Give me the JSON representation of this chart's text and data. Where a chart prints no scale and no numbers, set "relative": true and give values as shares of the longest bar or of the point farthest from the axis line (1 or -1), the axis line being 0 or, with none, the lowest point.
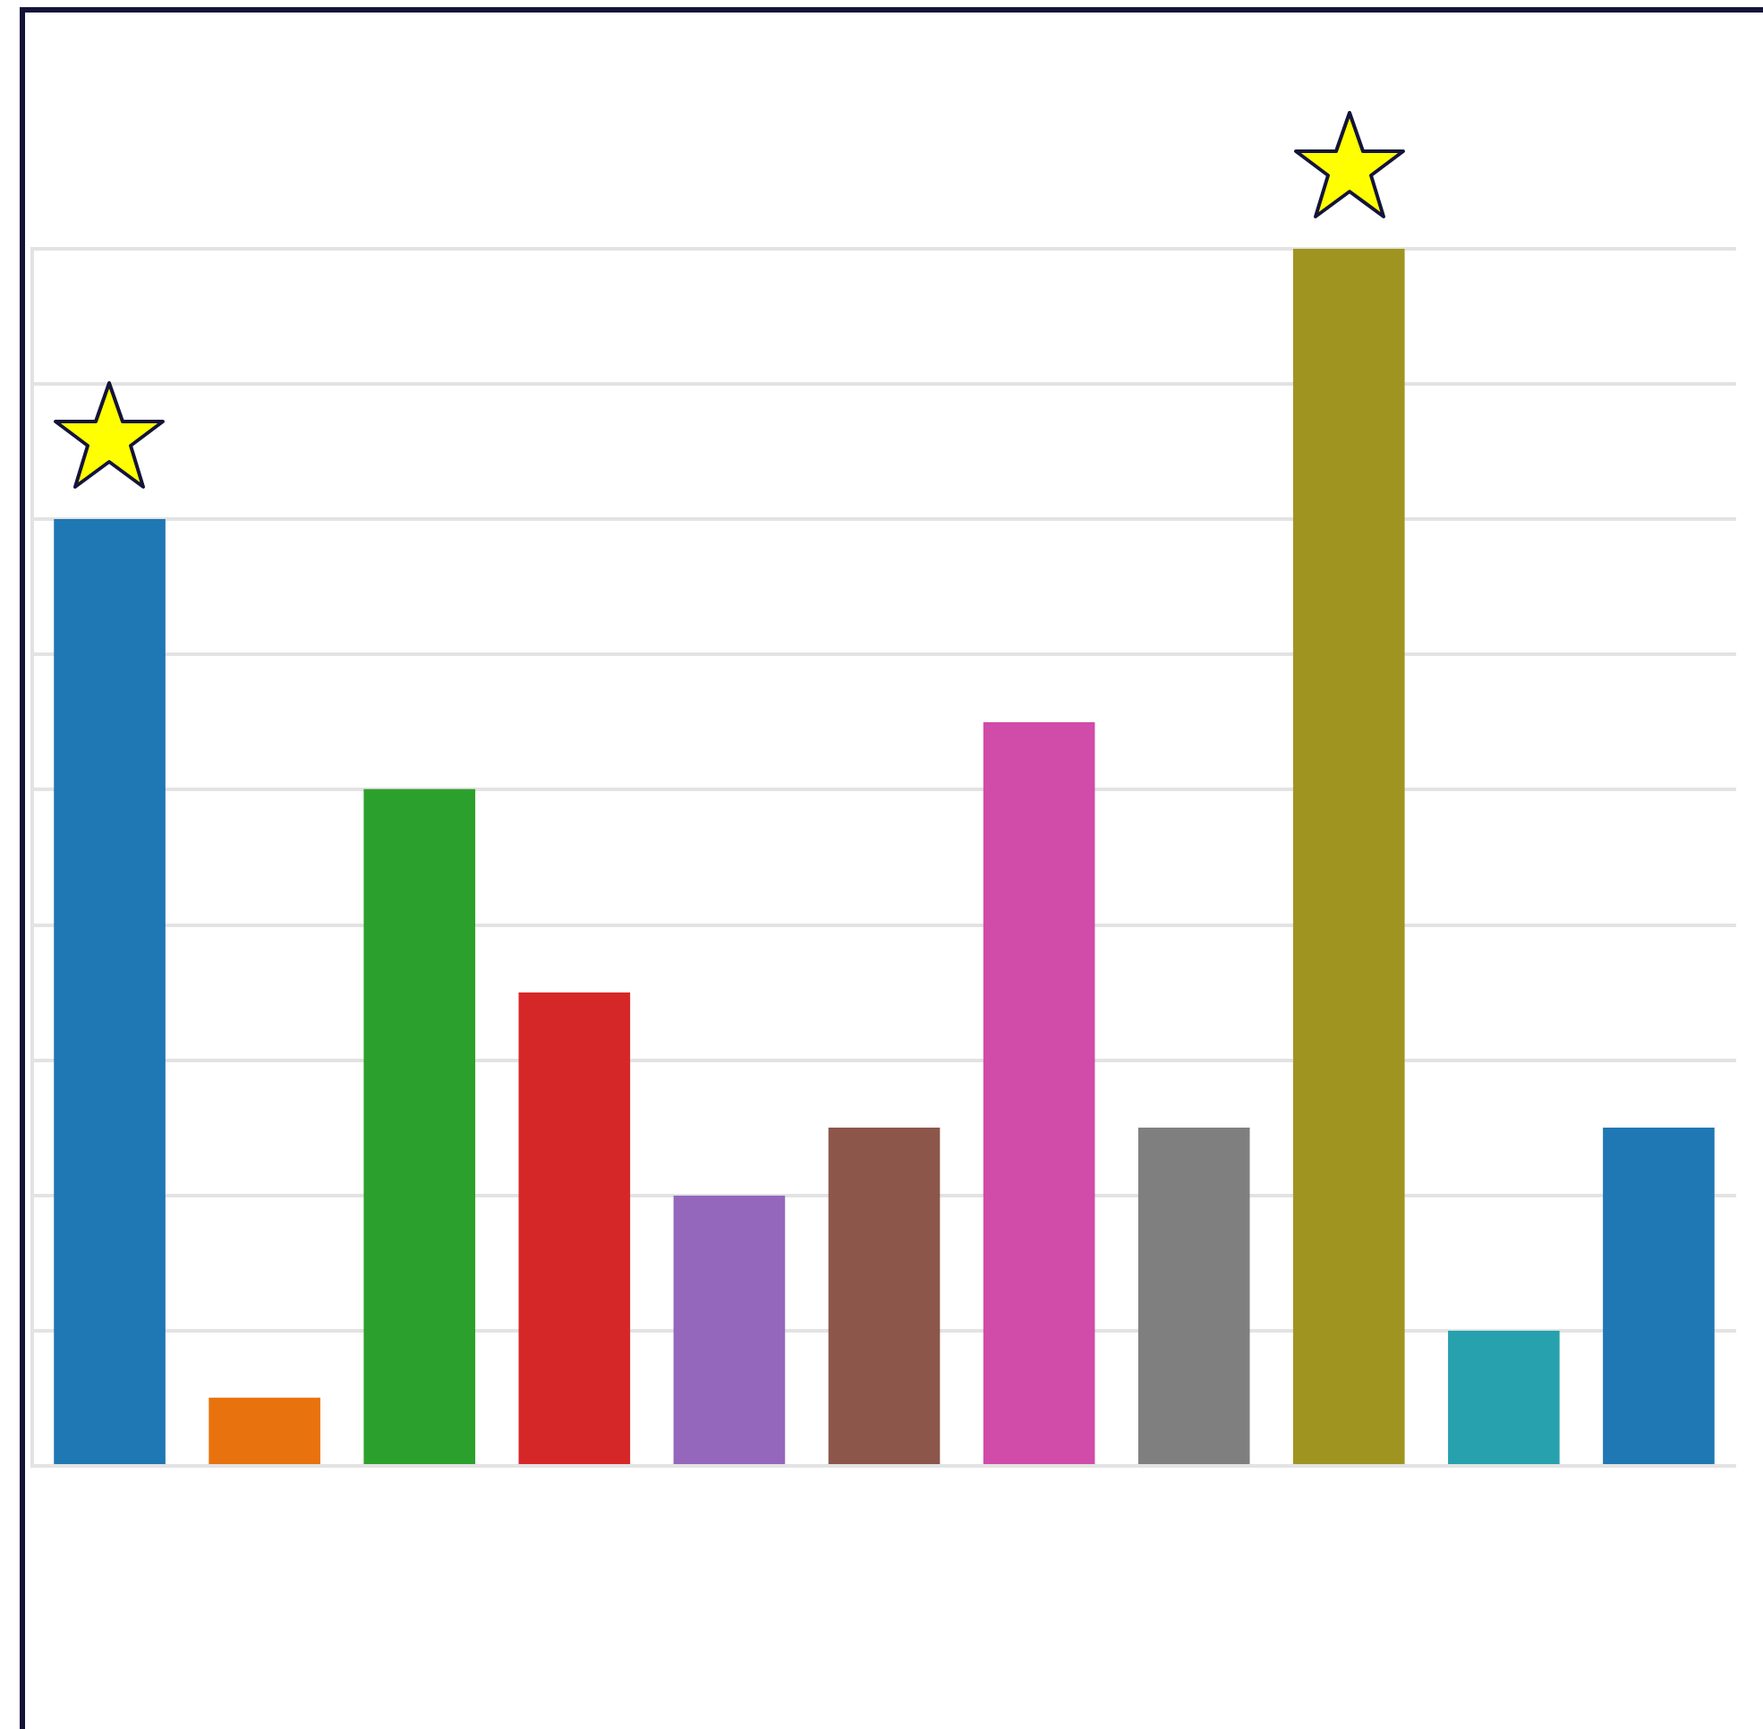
{
  "chart_data": {
    "type": "bar",
    "relative": true,
    "grid": "y",
    "categories": [
      null,
      null,
      null,
      null,
      null,
      null,
      null,
      null,
      null,
      null,
      null
    ],
    "values": [
      0.778,
      0.056,
      0.556,
      0.389,
      0.222,
      0.278,
      0.611,
      0.278,
      1,
      0.111,
      0.278
    ],
    "colors": [
      "#1f77b4",
      "#e8730e",
      "#2ca02c",
      "#d62728",
      "#9467bd",
      "#8c564b",
      "#d14ba8",
      "#7f7f7f",
      "#a09420",
      "#26a1ad",
      "#1f77b4"
    ]
  }
}
